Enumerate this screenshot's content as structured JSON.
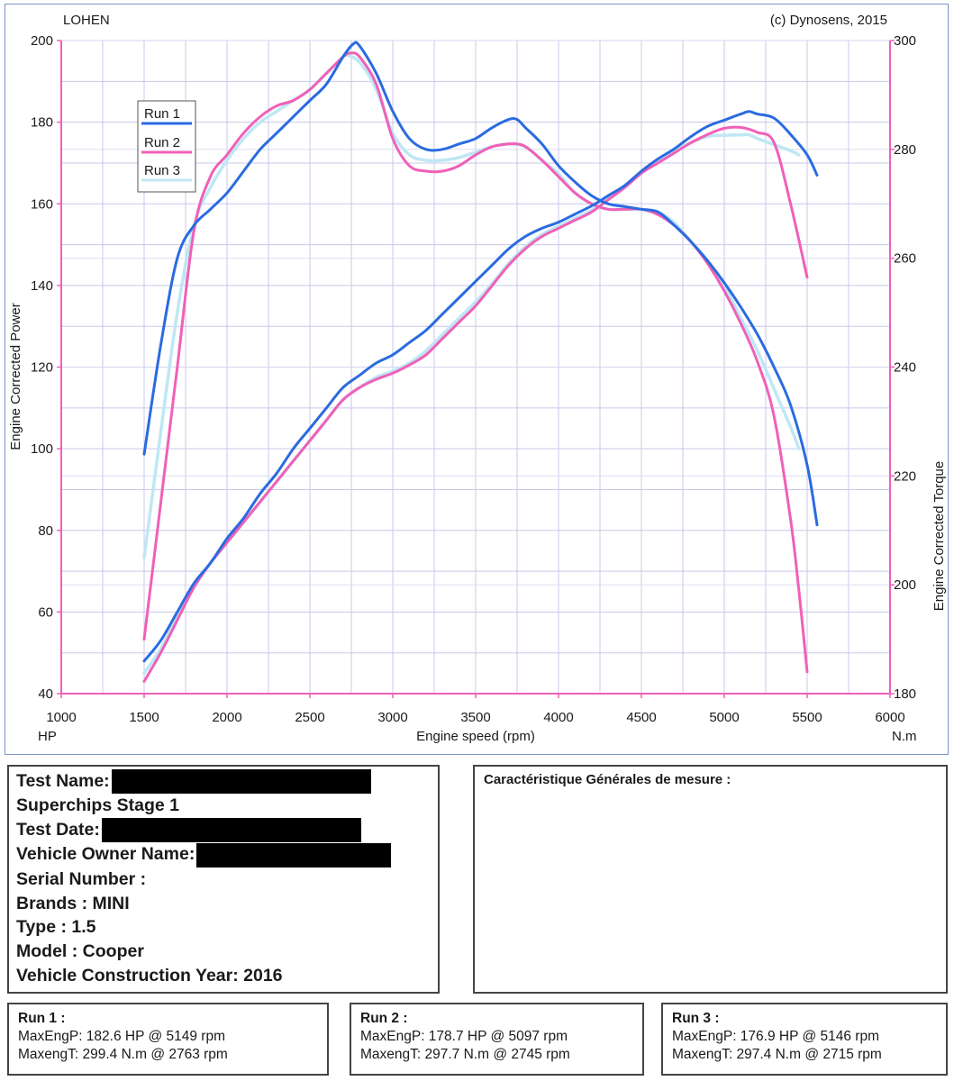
{
  "header": {
    "left": "LOHEN",
    "right": "(c) Dynosens, 2015"
  },
  "chart_data": {
    "type": "line",
    "title": "",
    "xlabel": "Engine speed (rpm)",
    "x_unit_left": "HP",
    "x_unit_right": "N.m",
    "ylabel": "Engine Corrected Power",
    "ylabel_right": "Engine Corrected Torque",
    "xlim": [
      1000,
      6000
    ],
    "ylim": [
      40,
      200
    ],
    "ylim_right": [
      180,
      300
    ],
    "x_ticks": [
      "1000",
      "1500",
      "2000",
      "2500",
      "3000",
      "3500",
      "4000",
      "4500",
      "5000",
      "5500",
      "6000"
    ],
    "y_ticks": [
      "40",
      "60",
      "80",
      "100",
      "120",
      "140",
      "160",
      "180",
      "200"
    ],
    "y_ticks_right": [
      "180",
      "200",
      "220",
      "240",
      "260",
      "280",
      "300"
    ],
    "grid": true,
    "legend": "top-left",
    "colors": {
      "run1": "#2a6be0",
      "run2": "#f060b8",
      "run3": "#bfe7f4",
      "axis": "#f060b8",
      "grid": "#c8c8ea"
    },
    "series": [
      {
        "name": "Run 1",
        "quantity": "power",
        "axis": "left",
        "color": "#2a6be0",
        "x": [
          1500,
          1600,
          1700,
          1800,
          1900,
          2000,
          2100,
          2200,
          2300,
          2400,
          2500,
          2600,
          2700,
          2800,
          2900,
          3000,
          3100,
          3200,
          3300,
          3400,
          3500,
          3600,
          3700,
          3800,
          3900,
          4000,
          4100,
          4200,
          4300,
          4400,
          4500,
          4600,
          4700,
          4800,
          4900,
          5000,
          5100,
          5150,
          5200,
          5300,
          5400,
          5500,
          5560
        ],
        "y": [
          48,
          53,
          60,
          67,
          72,
          78,
          83,
          89,
          94,
          100,
          105,
          110,
          115,
          118,
          121,
          123,
          126,
          129,
          133,
          137,
          141,
          145,
          149,
          152,
          154,
          155.5,
          157.5,
          159.5,
          162,
          164.5,
          168,
          171,
          173.5,
          176.5,
          179,
          180.5,
          182,
          182.6,
          182,
          181,
          177,
          172,
          167
        ]
      },
      {
        "name": "Run 2",
        "quantity": "power",
        "axis": "left",
        "color": "#f060b8",
        "x": [
          1500,
          1600,
          1700,
          1800,
          1900,
          2000,
          2100,
          2200,
          2300,
          2400,
          2500,
          2600,
          2700,
          2800,
          2900,
          3000,
          3100,
          3200,
          3300,
          3400,
          3500,
          3600,
          3700,
          3800,
          3900,
          4000,
          4100,
          4200,
          4300,
          4400,
          4500,
          4600,
          4700,
          4800,
          4900,
          5000,
          5100,
          5200,
          5300,
          5400,
          5500
        ],
        "y": [
          43,
          50,
          58,
          66,
          72,
          77,
          82,
          87,
          92,
          97,
          102,
          107,
          112,
          115,
          117,
          118.5,
          120.5,
          123,
          127,
          131,
          135,
          140,
          145,
          149,
          152,
          154,
          156,
          158,
          161,
          164,
          167.5,
          170,
          172.5,
          175,
          177,
          178.5,
          178.7,
          177.5,
          175,
          160,
          142
        ]
      },
      {
        "name": "Run 3",
        "quantity": "power",
        "axis": "left",
        "color": "#bfe7f4",
        "x": [
          1500,
          1600,
          1700,
          1800,
          1900,
          2000,
          2100,
          2200,
          2300,
          2400,
          2500,
          2600,
          2700,
          2800,
          2900,
          3000,
          3100,
          3200,
          3300,
          3400,
          3500,
          3600,
          3700,
          3800,
          3900,
          4000,
          4100,
          4200,
          4300,
          4400,
          4500,
          4600,
          4700,
          4800,
          4900,
          5000,
          5100,
          5150,
          5200,
          5300,
          5400,
          5450
        ],
        "y": [
          45,
          51,
          59,
          66,
          72,
          77,
          82,
          87,
          92,
          97,
          102,
          107,
          112,
          115,
          117.5,
          119,
          121,
          124,
          128,
          132,
          136,
          140.5,
          145.5,
          149.5,
          152.5,
          154.5,
          156.5,
          158.5,
          161.5,
          164.5,
          167.5,
          170.5,
          173,
          175,
          176.5,
          176.8,
          176.9,
          176.9,
          176,
          174.5,
          173,
          172
        ]
      },
      {
        "name": "Run 1",
        "quantity": "torque",
        "axis": "right",
        "color": "#2a6be0",
        "x": [
          1500,
          1600,
          1700,
          1800,
          1900,
          2000,
          2100,
          2200,
          2300,
          2400,
          2500,
          2600,
          2700,
          2763,
          2800,
          2900,
          3000,
          3100,
          3200,
          3300,
          3400,
          3500,
          3600,
          3700,
          3750,
          3800,
          3900,
          4000,
          4100,
          4200,
          4300,
          4400,
          4500,
          4600,
          4700,
          4800,
          4900,
          5000,
          5100,
          5200,
          5300,
          5400,
          5500,
          5560
        ],
        "y": [
          224,
          244,
          260,
          266,
          269,
          272,
          276,
          280,
          283,
          286,
          289,
          292,
          297,
          299.4,
          299,
          294,
          287,
          282,
          280,
          280,
          281,
          282,
          284,
          285.5,
          285.5,
          284,
          281,
          277,
          274,
          271.5,
          270,
          269.5,
          269,
          268.5,
          266,
          263,
          259.5,
          255.5,
          251,
          246,
          240,
          233,
          222,
          211
        ]
      },
      {
        "name": "Run 2",
        "quantity": "torque",
        "axis": "right",
        "color": "#f060b8",
        "x": [
          1500,
          1600,
          1700,
          1800,
          1900,
          2000,
          2100,
          2200,
          2300,
          2400,
          2500,
          2600,
          2700,
          2745,
          2800,
          2900,
          3000,
          3100,
          3200,
          3300,
          3400,
          3500,
          3600,
          3700,
          3750,
          3800,
          3900,
          4000,
          4100,
          4200,
          4300,
          4400,
          4500,
          4600,
          4700,
          4800,
          4900,
          5000,
          5100,
          5200,
          5300,
          5400,
          5450,
          5500
        ],
        "y": [
          190,
          215,
          240,
          265,
          275,
          279,
          283,
          286,
          288,
          289,
          291,
          294,
          297,
          297.7,
          297,
          292,
          282,
          277,
          276,
          276,
          277,
          279,
          280.5,
          281,
          281,
          280.5,
          278,
          275,
          272,
          270,
          269,
          269,
          269,
          268,
          266,
          263,
          259,
          254,
          248,
          241,
          231,
          212,
          199,
          184
        ]
      },
      {
        "name": "Run 3",
        "quantity": "torque",
        "axis": "right",
        "color": "#bfe7f4",
        "x": [
          1500,
          1600,
          1700,
          1800,
          1900,
          2000,
          2100,
          2200,
          2300,
          2400,
          2500,
          2600,
          2700,
          2715,
          2800,
          2900,
          3000,
          3100,
          3200,
          3300,
          3400,
          3500,
          3600,
          3700,
          3800,
          3900,
          4000,
          4100,
          4200,
          4300,
          4400,
          4500,
          4600,
          4700,
          4800,
          4900,
          5000,
          5100,
          5200,
          5300,
          5400,
          5450
        ],
        "y": [
          205,
          228,
          250,
          266,
          273,
          278,
          282,
          285,
          287,
          289,
          291,
          294,
          297,
          297.4,
          296,
          291,
          283,
          279,
          278,
          278,
          278.5,
          279.5,
          280.5,
          281,
          280.5,
          278,
          275.5,
          272,
          270,
          269,
          269,
          269,
          268.5,
          266.5,
          263,
          259.5,
          255,
          249,
          243,
          236,
          229,
          225
        ]
      }
    ]
  },
  "info": {
    "test_name_label": "Test Name:",
    "stage": "Superchips Stage 1",
    "test_date_label": "Test Date:",
    "owner_label": "Vehicle Owner Name:",
    "serial": "Serial Number  :",
    "brands": "Brands  : MINI",
    "type": "Type  : 1.5",
    "model": "Model   : Cooper",
    "year": "Vehicle Construction Year: 2016"
  },
  "cara_title": "Caractéristique Générales de mesure :",
  "runs": [
    {
      "title": "Run 1  :",
      "power": "MaxEngP: 182.6 HP @ 5149 rpm",
      "torque": "MaxengT: 299.4 N.m @ 2763 rpm"
    },
    {
      "title": "Run 2  :",
      "power": "MaxEngP: 178.7 HP @ 5097 rpm",
      "torque": "MaxengT: 297.7 N.m @ 2745 rpm"
    },
    {
      "title": "Run 3  :",
      "power": "MaxEngP: 176.9 HP @ 5146 rpm",
      "torque": "MaxengT: 297.4 N.m @ 2715 rpm"
    }
  ]
}
